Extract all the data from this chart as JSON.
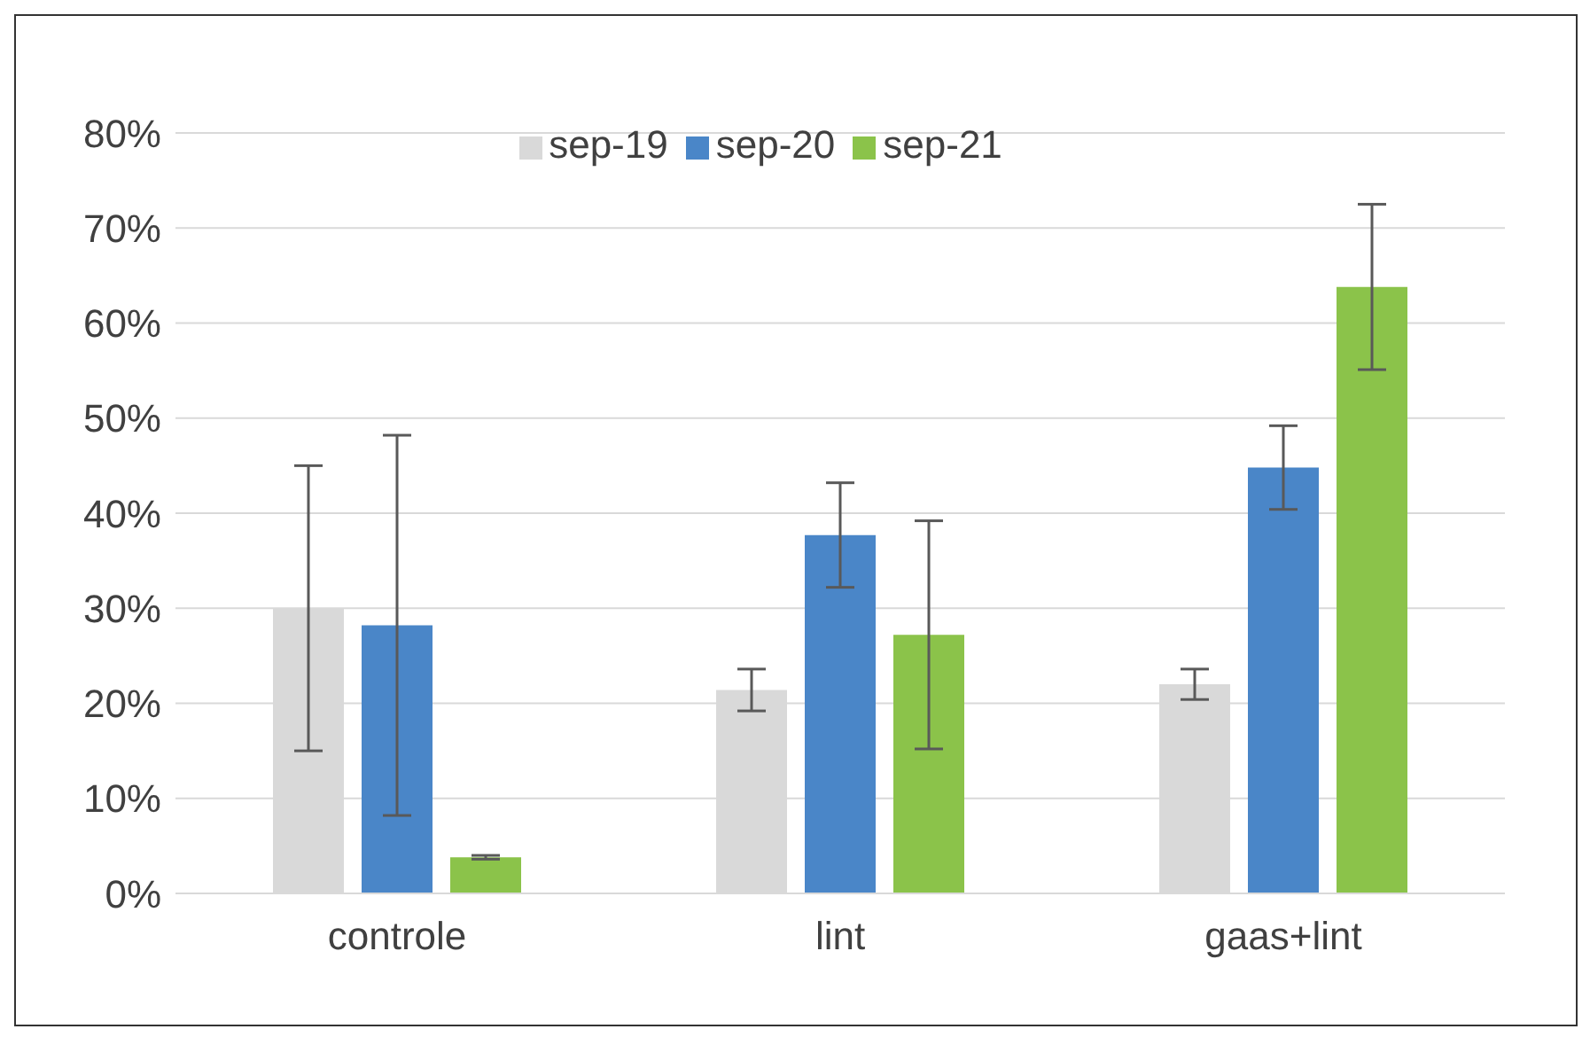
{
  "chart_data": {
    "type": "bar",
    "categories": [
      "controle",
      "lint",
      "gaas+lint"
    ],
    "series": [
      {
        "name": "sep-19",
        "color": "#d9d9d9",
        "values": [
          30,
          21.4,
          22
        ],
        "errors": [
          15,
          2.2,
          1.6
        ]
      },
      {
        "name": "sep-20",
        "color": "#4a86c8",
        "values": [
          28.2,
          37.7,
          44.8
        ],
        "errors": [
          20,
          5.5,
          4.4
        ]
      },
      {
        "name": "sep-21",
        "color": "#8bc34a",
        "values": [
          3.8,
          27.2,
          63.8
        ],
        "errors": [
          0.2,
          12,
          8.7
        ]
      }
    ],
    "ylim": [
      0,
      80
    ],
    "yticks": [
      {
        "value": 0,
        "label": "0%"
      },
      {
        "value": 10,
        "label": "10%"
      },
      {
        "value": 20,
        "label": "20%"
      },
      {
        "value": 30,
        "label": "30%"
      },
      {
        "value": 40,
        "label": "40%"
      },
      {
        "value": 50,
        "label": "50%"
      },
      {
        "value": 60,
        "label": "60%"
      },
      {
        "value": 70,
        "label": "70%"
      },
      {
        "value": 80,
        "label": "80%"
      }
    ],
    "grid": "y",
    "legend": "top"
  }
}
